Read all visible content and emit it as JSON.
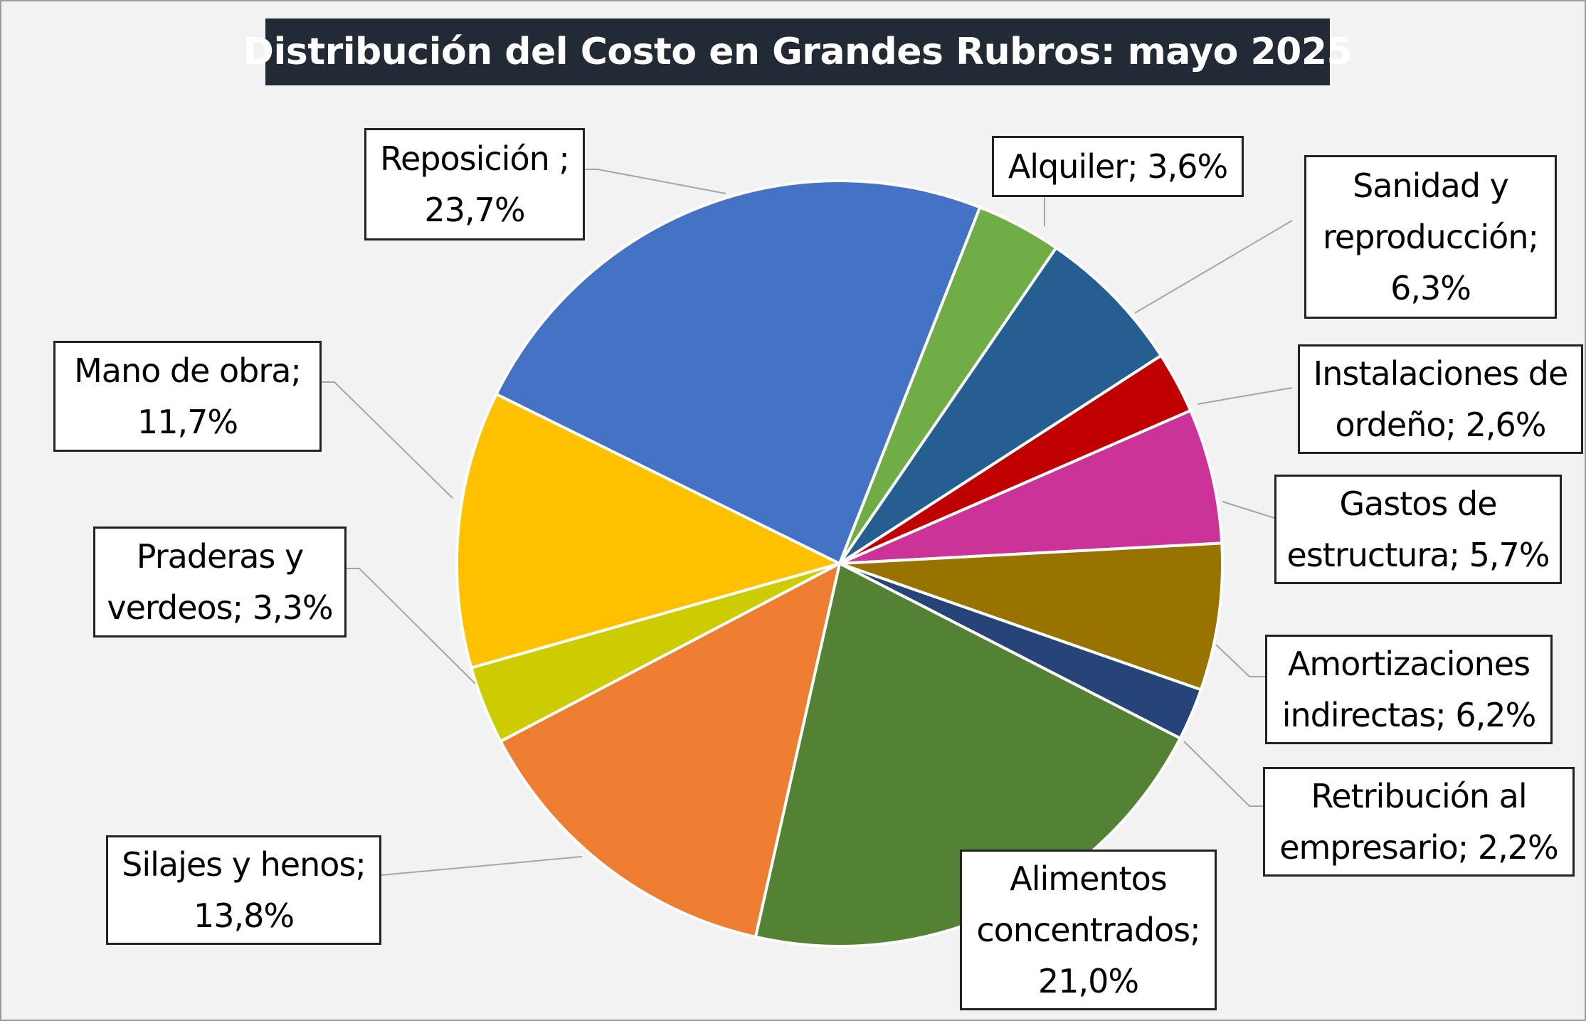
{
  "chart_data": {
    "type": "pie",
    "title": "Distribución del Costo en Grandes Rubros: mayo 2025",
    "slices": [
      {
        "key": "alquiler",
        "label": "Alquiler; 3,6%",
        "value": 3.6,
        "color": "#70ad47"
      },
      {
        "key": "sanidad",
        "label": "Sanidad y reproducción; 6,3%",
        "value": 6.3,
        "color": "#255e91"
      },
      {
        "key": "instalaciones",
        "label": "Instalaciones de ordeño; 2,6%",
        "value": 2.6,
        "color": "#c00000"
      },
      {
        "key": "gastos",
        "label": "Gastos de estructura; 5,7%",
        "value": 5.7,
        "color": "#cc3399"
      },
      {
        "key": "amortizaciones",
        "label": "Amortizaciones indirectas; 6,2%",
        "value": 6.2,
        "color": "#997300"
      },
      {
        "key": "retribucion",
        "label": "Retribución al empresario; 2,2%",
        "value": 2.2,
        "color": "#264478"
      },
      {
        "key": "alimentos",
        "label": "Alimentos concentrados; 21,0%",
        "value": 21.0,
        "color": "#548235"
      },
      {
        "key": "silajes",
        "label": "Silajes y henos; 13,8%",
        "value": 13.8,
        "color": "#ed7d31"
      },
      {
        "key": "praderas",
        "label": "Praderas y verdeos; 3,3%",
        "value": 3.3,
        "color": "#cccc00"
      },
      {
        "key": "mano",
        "label": "Mano de obra; 11,7%",
        "value": 11.7,
        "color": "#ffc000"
      },
      {
        "key": "reposicion",
        "label": "Reposición ; 23,7%",
        "value": 23.7,
        "color": "#4472c4"
      }
    ]
  }
}
